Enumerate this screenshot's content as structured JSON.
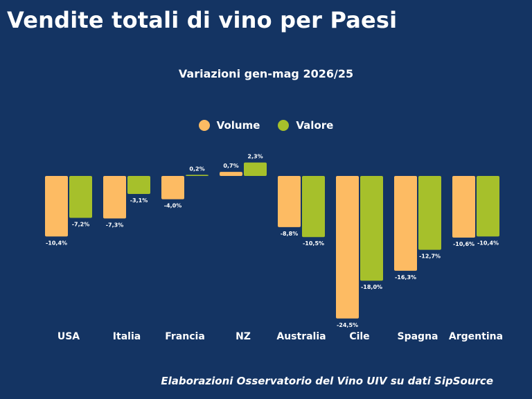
{
  "header": {
    "title": "Vendite totali di vino per Paesi"
  },
  "footer": {
    "source": "Elaborazioni Osservatorio del Vino UIV su dati SipSource"
  },
  "colors": {
    "background": "#143463",
    "volume": "#FDBB63",
    "valore": "#A6C02B",
    "text": "#FFFFFF"
  },
  "chart_data": {
    "type": "bar",
    "title": "",
    "subtitle": "Variazioni gen-mag 2026/25",
    "xlabel": "",
    "ylabel": "",
    "categories": [
      "USA",
      "Italia",
      "Francia",
      "NZ",
      "Australia",
      "Cile",
      "Spagna",
      "Argentina"
    ],
    "series": [
      {
        "name": "Volume",
        "color": "#FDBB63",
        "values": [
          -10.4,
          -7.3,
          -4.0,
          0.7,
          -8.8,
          -24.5,
          -16.3,
          -10.6
        ],
        "labels": [
          "-10,4%",
          "-7,3%",
          "-4,0%",
          "0,7%",
          "-8,8%",
          "-24,5%",
          "-16,3%",
          "-10,6%"
        ]
      },
      {
        "name": "Valore",
        "color": "#A6C02B",
        "values": [
          -7.2,
          -3.1,
          0.2,
          2.3,
          -10.5,
          -18.0,
          -12.7,
          -10.4
        ],
        "labels": [
          "-7,2%",
          "-3,1%",
          "0,2%",
          "2,3%",
          "-10,5%",
          "-18,0%",
          "-12,7%",
          "-10,4%"
        ]
      }
    ],
    "ylim": [
      -25,
      3
    ],
    "grid": false,
    "legend_position": "top-center"
  }
}
